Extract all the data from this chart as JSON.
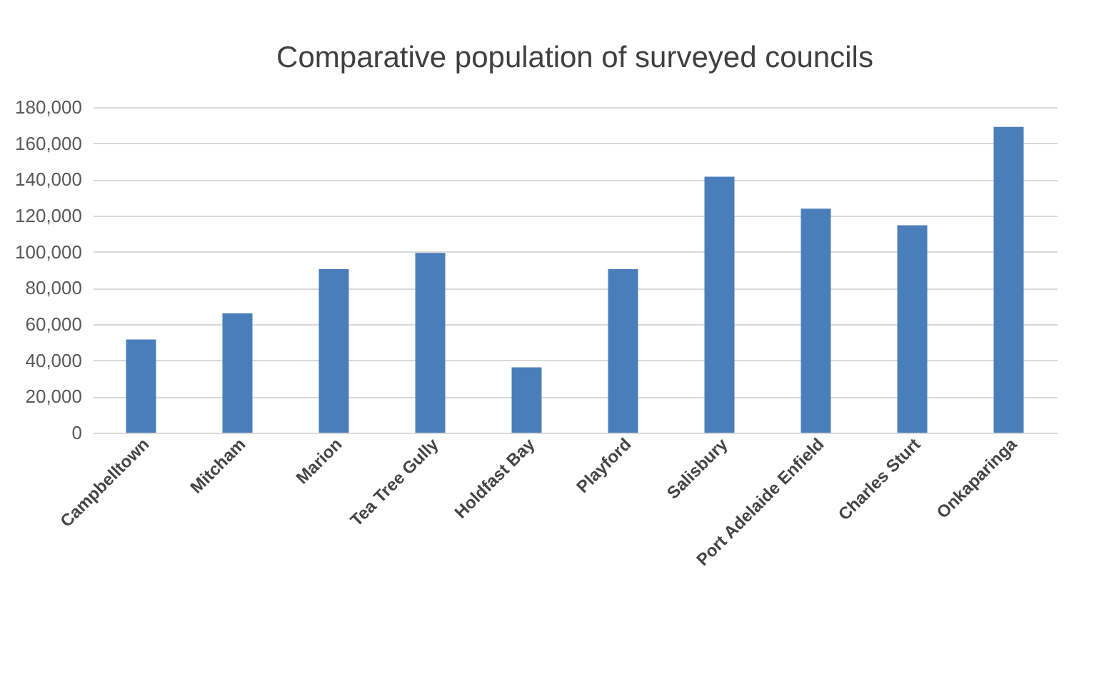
{
  "chart_data": {
    "type": "bar",
    "title": "Comparative population of surveyed councils",
    "categories": [
      "Campbelltown",
      "Mitcham",
      "Marion",
      "Tea Tree Gully",
      "Holdfast Bay",
      "Playford",
      "Salisbury",
      "Port Adelaide Enfield",
      "Charles Sturt",
      "Onkaparinga"
    ],
    "values": [
      51500,
      66000,
      90400,
      99400,
      36100,
      90400,
      141500,
      123800,
      114700,
      169000
    ],
    "color": "#4a7ebb",
    "ylim": [
      0,
      180000
    ],
    "yticks": [
      {
        "value": 0,
        "label": "0"
      },
      {
        "value": 20000,
        "label": "20,000"
      },
      {
        "value": 40000,
        "label": "40,000"
      },
      {
        "value": 60000,
        "label": "60,000"
      },
      {
        "value": 80000,
        "label": "80,000"
      },
      {
        "value": 100000,
        "label": "100,000"
      },
      {
        "value": 120000,
        "label": "120,000"
      },
      {
        "value": 140000,
        "label": "140,000"
      },
      {
        "value": 160000,
        "label": "160,000"
      },
      {
        "value": 180000,
        "label": "180,000"
      }
    ],
    "grid": "y"
  }
}
